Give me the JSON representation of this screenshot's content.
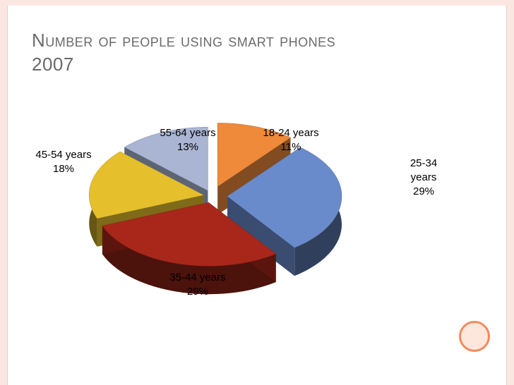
{
  "slide": {
    "title_line1": "Number of people using smart phones",
    "title_line2": "2007",
    "accent": "#f28a5e"
  },
  "chart_data": {
    "type": "pie",
    "categories": [
      "18-24 years",
      "25-34 years",
      "35-44 years",
      "45-54 years",
      "55-64 years"
    ],
    "values": [
      11,
      29,
      29,
      18,
      13
    ],
    "colors": [
      "#ee8a3a",
      "#6a8bcb",
      "#a8271a",
      "#e5c02c",
      "#a9b5d2"
    ],
    "labels": [
      {
        "lines": [
          "18-24 years",
          "11%"
        ]
      },
      {
        "lines": [
          "25-34",
          "years",
          "29%"
        ]
      },
      {
        "lines": [
          "35-44 years",
          "29%"
        ]
      },
      {
        "lines": [
          "45-54 years",
          "18%"
        ]
      },
      {
        "lines": [
          "55-64 years",
          "13%"
        ]
      }
    ],
    "exploded": true,
    "three_d": true
  }
}
